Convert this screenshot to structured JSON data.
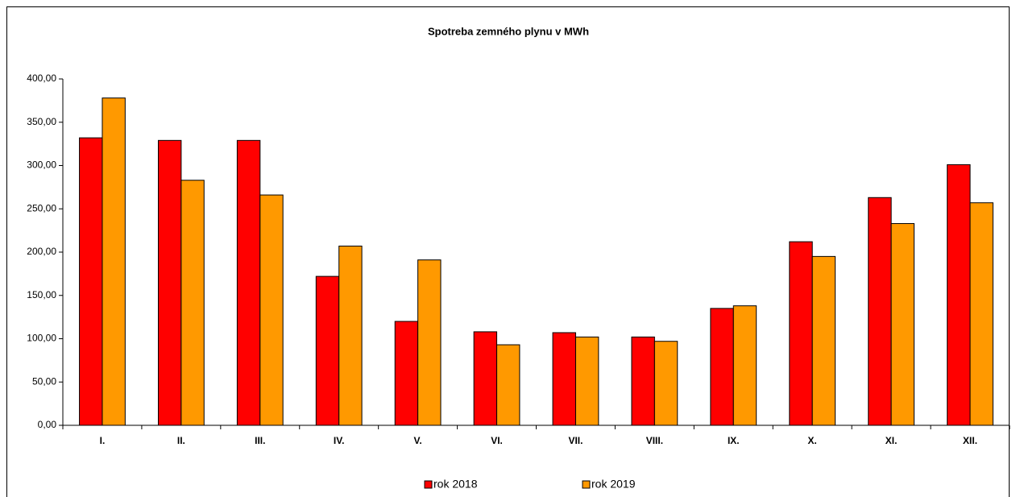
{
  "chart_data": {
    "type": "bar",
    "title": "Spotreba zemného plynu v MWh",
    "categories": [
      "I.",
      "II.",
      "III.",
      "IV.",
      "V.",
      "VI.",
      "VII.",
      "VIII.",
      "IX.",
      "X.",
      "XI.",
      "XII."
    ],
    "series": [
      {
        "name": "rok 2018",
        "color": "#ff0000",
        "values": [
          332,
          329,
          329,
          172,
          120,
          108,
          107,
          102,
          135,
          212,
          263,
          301
        ]
      },
      {
        "name": "rok 2019",
        "color": "#ff9900",
        "values": [
          378,
          283,
          266,
          207,
          191,
          93,
          102,
          97,
          138,
          195,
          233,
          257
        ]
      }
    ],
    "ylim": [
      0,
      400
    ],
    "yticks": [
      {
        "value": 0,
        "label": "0,00"
      },
      {
        "value": 50,
        "label": "50,00"
      },
      {
        "value": 100,
        "label": "100,00"
      },
      {
        "value": 150,
        "label": "150,00"
      },
      {
        "value": 200,
        "label": "200,00"
      },
      {
        "value": 250,
        "label": "250,00"
      },
      {
        "value": 300,
        "label": "300,00"
      },
      {
        "value": 350,
        "label": "350,00"
      },
      {
        "value": 400,
        "label": "400,00"
      }
    ],
    "grid": false,
    "legend": "bottom"
  }
}
